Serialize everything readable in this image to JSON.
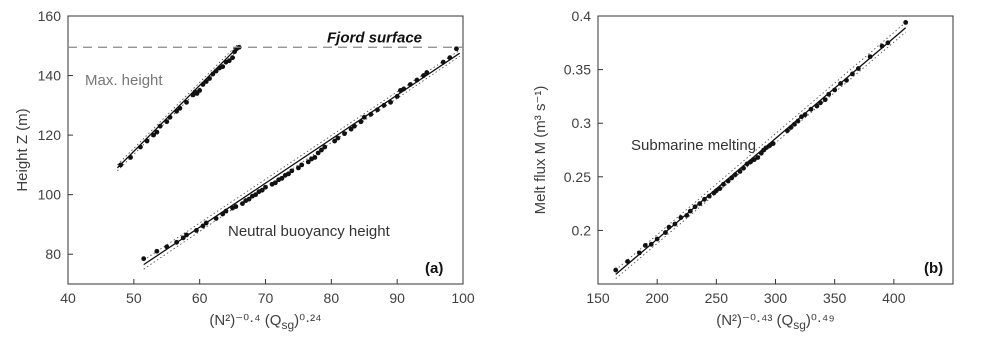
{
  "chart_data": [
    {
      "type": "scatter",
      "panel_label": "(a)",
      "xlabel": "(N²)⁻⁰·⁴ (Q",
      "xlabel_sub": "sg",
      "xlabel_tail": ")⁰·²⁴",
      "ylabel": "Height Z (m)",
      "xlim": [
        40,
        100
      ],
      "ylim": [
        70,
        160
      ],
      "xticks": [
        40,
        50,
        60,
        70,
        80,
        90,
        100
      ],
      "yticks": [
        80,
        100,
        120,
        140,
        160
      ],
      "grid": false,
      "annotations": {
        "surface_label": "Fjord surface",
        "max_label": "Max. height",
        "neutral_label": "Neutral buoyancy height"
      },
      "fjord_surface_y": 149.5,
      "series": [
        {
          "id": "max-height",
          "points": [
            [
              48,
              110
            ],
            [
              49.5,
              112.5
            ],
            [
              51,
              116
            ],
            [
              52,
              118
            ],
            [
              53,
              120
            ],
            [
              53.5,
              121
            ],
            [
              54,
              123
            ],
            [
              55,
              124.5
            ],
            [
              55.5,
              126
            ],
            [
              56.5,
              128
            ],
            [
              57,
              129
            ],
            [
              58,
              131
            ],
            [
              59,
              133.5
            ],
            [
              59.3,
              134.5
            ],
            [
              59.6,
              134
            ],
            [
              60,
              135
            ],
            [
              60.5,
              137
            ],
            [
              61,
              138
            ],
            [
              61.5,
              139
            ],
            [
              62,
              140.5
            ],
            [
              62.5,
              141.5
            ],
            [
              63,
              142.5
            ],
            [
              63.5,
              143
            ],
            [
              64,
              144.5
            ],
            [
              64.5,
              145
            ],
            [
              65,
              146
            ],
            [
              65.3,
              148
            ],
            [
              65.6,
              149
            ],
            [
              66,
              149.5
            ]
          ],
          "fit": [
            [
              47.5,
              109
            ],
            [
              66,
              150
            ]
          ],
          "band": [
            [
              [
                47.5,
                108
              ],
              [
                66,
                149
              ]
            ],
            [
              [
                47.5,
                110
              ],
              [
                66,
                151
              ]
            ]
          ]
        },
        {
          "id": "neutral-buoyancy-height",
          "points": [
            [
              51.5,
              78.5
            ],
            [
              53.5,
              81
            ],
            [
              55,
              82.5
            ],
            [
              56.5,
              84
            ],
            [
              57.5,
              85.5
            ],
            [
              58,
              86.5
            ],
            [
              59.5,
              88
            ],
            [
              60.5,
              89.5
            ],
            [
              61,
              90.5
            ],
            [
              62.5,
              92
            ],
            [
              63.5,
              93.5
            ],
            [
              64,
              94.5
            ],
            [
              65,
              95.5
            ],
            [
              65.5,
              96
            ],
            [
              66.5,
              97
            ],
            [
              67,
              98
            ],
            [
              67.5,
              98.5
            ],
            [
              68,
              99.5
            ],
            [
              68.5,
              100
            ],
            [
              69,
              101
            ],
            [
              69.5,
              101.5
            ],
            [
              70,
              102.5
            ],
            [
              71,
              103.5
            ],
            [
              71.5,
              104
            ],
            [
              72,
              105
            ],
            [
              72.5,
              105.5
            ],
            [
              73,
              106.5
            ],
            [
              73.5,
              107
            ],
            [
              74,
              108
            ],
            [
              75,
              109
            ],
            [
              75.5,
              110
            ],
            [
              76.5,
              111
            ],
            [
              77,
              112
            ],
            [
              77.5,
              112.5
            ],
            [
              78,
              114
            ],
            [
              78.5,
              115
            ],
            [
              79,
              116
            ],
            [
              80.5,
              118
            ],
            [
              81,
              119
            ],
            [
              82,
              120.5
            ],
            [
              83,
              122
            ],
            [
              83.5,
              123
            ],
            [
              84.5,
              124.5
            ],
            [
              85,
              126
            ],
            [
              86,
              127
            ],
            [
              87,
              128.5
            ],
            [
              88,
              130
            ],
            [
              89,
              131
            ],
            [
              90,
              133
            ],
            [
              90.5,
              135
            ],
            [
              91,
              135.5
            ],
            [
              92,
              137
            ],
            [
              93,
              138.5
            ],
            [
              94,
              140
            ],
            [
              94.5,
              141
            ],
            [
              97,
              144.5
            ],
            [
              98,
              146
            ],
            [
              99,
              149
            ]
          ],
          "fit": [
            [
              51.5,
              76.5
            ],
            [
              99.5,
              147.5
            ]
          ],
          "band": [
            [
              [
                51.5,
                75
              ],
              [
                99.5,
                146.5
              ]
            ],
            [
              [
                51.5,
                78
              ],
              [
                99.5,
                148.5
              ]
            ]
          ]
        }
      ]
    },
    {
      "type": "scatter",
      "panel_label": "(b)",
      "xlabel": "(N²)⁻⁰·⁴³ (Q",
      "xlabel_sub": "sg",
      "xlabel_tail": ")⁰·⁴⁹",
      "ylabel": "Melt flux M (m³ s⁻¹)",
      "xlim": [
        150,
        450
      ],
      "ylim": [
        0.15,
        0.4
      ],
      "xticks": [
        150,
        200,
        250,
        300,
        350,
        400
      ],
      "yticks": [
        0.2,
        0.25,
        0.3,
        0.35,
        0.4
      ],
      "grid": false,
      "annotations": {
        "melt_label": "Submarine melting"
      },
      "series": [
        {
          "id": "submarine-melting",
          "points": [
            [
              165,
              0.163
            ],
            [
              175,
              0.171
            ],
            [
              185,
              0.179
            ],
            [
              190,
              0.186
            ],
            [
              195,
              0.187
            ],
            [
              200,
              0.192
            ],
            [
              207,
              0.198
            ],
            [
              210,
              0.203
            ],
            [
              215,
              0.206
            ],
            [
              220,
              0.212
            ],
            [
              225,
              0.214
            ],
            [
              228,
              0.218
            ],
            [
              232,
              0.222
            ],
            [
              236,
              0.225
            ],
            [
              240,
              0.229
            ],
            [
              244,
              0.232
            ],
            [
              248,
              0.235
            ],
            [
              250,
              0.237
            ],
            [
              253,
              0.239
            ],
            [
              256,
              0.243
            ],
            [
              260,
              0.246
            ],
            [
              263,
              0.249
            ],
            [
              266,
              0.252
            ],
            [
              270,
              0.255
            ],
            [
              273,
              0.258
            ],
            [
              276,
              0.262
            ],
            [
              279,
              0.264
            ],
            [
              282,
              0.266
            ],
            [
              285,
              0.268
            ],
            [
              288,
              0.272
            ],
            [
              290,
              0.275
            ],
            [
              292,
              0.277
            ],
            [
              295,
              0.279
            ],
            [
              298,
              0.281
            ],
            [
              310,
              0.293
            ],
            [
              313,
              0.296
            ],
            [
              316,
              0.299
            ],
            [
              319,
              0.302
            ],
            [
              322,
              0.306
            ],
            [
              325,
              0.308
            ],
            [
              330,
              0.313
            ],
            [
              335,
              0.316
            ],
            [
              338,
              0.319
            ],
            [
              342,
              0.322
            ],
            [
              345,
              0.327
            ],
            [
              350,
              0.331
            ],
            [
              355,
              0.337
            ],
            [
              360,
              0.34
            ],
            [
              365,
              0.346
            ],
            [
              370,
              0.351
            ],
            [
              380,
              0.362
            ],
            [
              390,
              0.372
            ],
            [
              395,
              0.375
            ],
            [
              410,
              0.394
            ]
          ],
          "fit": [
            [
              165,
              0.159
            ],
            [
              410,
              0.389
            ]
          ],
          "band": [
            [
              [
                165,
                0.155
              ],
              [
                410,
                0.385
              ]
            ],
            [
              [
                165,
                0.163
              ],
              [
                410,
                0.394
              ]
            ]
          ]
        }
      ]
    }
  ]
}
